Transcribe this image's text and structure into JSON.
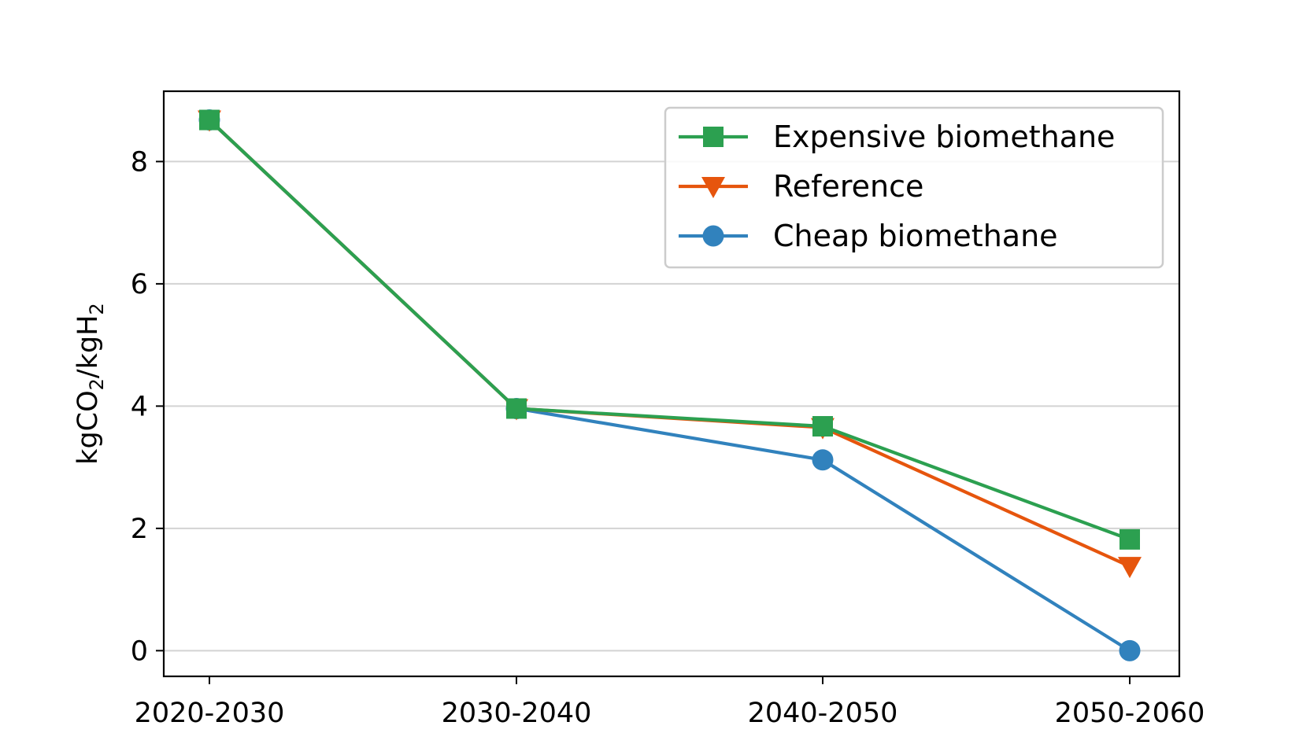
{
  "chart_data": {
    "type": "line",
    "categories": [
      "2020-2030",
      "2030-2040",
      "2040-2050",
      "2050-2060"
    ],
    "series": [
      {
        "name": "Expensive biomethane",
        "values": [
          8.68,
          3.96,
          3.67,
          1.82
        ],
        "color": "#2ca050",
        "marker": "square"
      },
      {
        "name": "Reference",
        "values": [
          8.68,
          3.96,
          3.65,
          1.38
        ],
        "color": "#e6550d",
        "marker": "triangle-down"
      },
      {
        "name": "Cheap biomethane",
        "values": [
          8.68,
          3.96,
          3.12,
          0.0
        ],
        "color": "#3182bd",
        "marker": "circle"
      }
    ],
    "ylabel": {
      "base1": "kgCO",
      "sub1": "2",
      "base2": "/kgH",
      "sub2": "2"
    },
    "ylim": [
      -0.42,
      9.15
    ],
    "yticks": [
      0,
      2,
      4,
      6,
      8
    ],
    "grid": "horizontal",
    "legend_position": "top-right",
    "gridline_color": "#d3d3d3"
  }
}
